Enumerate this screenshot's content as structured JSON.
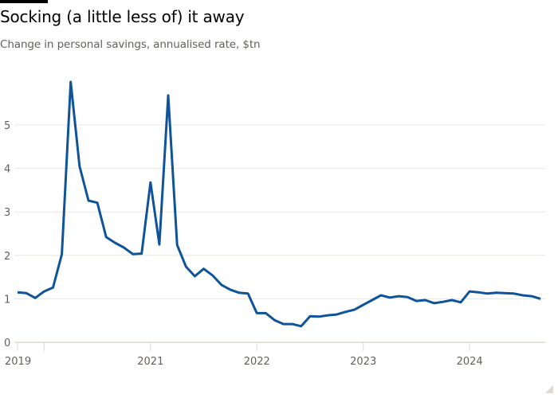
{
  "header": {
    "title": "Socking (a little less of) it away",
    "subtitle": "Change in personal savings, annualised rate, $tn"
  },
  "colors": {
    "line": "#0f5499",
    "grid": "#ece5df",
    "axis_text": "#66605c",
    "title": "#000000",
    "accent_bar": "#000000",
    "corner": "#e3d6cb"
  },
  "chart_data": {
    "type": "line",
    "title": "Socking (a little less of) it away",
    "subtitle": "Change in personal savings, annualised rate, $tn",
    "xlabel": "",
    "ylabel": "$tn",
    "ylim": [
      0,
      6
    ],
    "yticks": [
      0,
      1,
      2,
      3,
      4,
      5
    ],
    "xtick_labels": [
      "2019",
      "2021",
      "2022",
      "2023",
      "2024"
    ],
    "grid": true,
    "legend": null,
    "series": [
      {
        "name": "Change in personal savings, annualised rate ($tn)",
        "frequency": "monthly",
        "start": "2019-10",
        "values": [
          1.15,
          1.13,
          1.02,
          1.17,
          1.26,
          2.03,
          5.99,
          4.05,
          3.26,
          3.21,
          2.42,
          2.29,
          2.18,
          2.03,
          2.04,
          3.68,
          2.25,
          5.68,
          2.24,
          1.74,
          1.52,
          1.69,
          1.54,
          1.32,
          1.21,
          1.14,
          1.12,
          0.67,
          0.67,
          0.51,
          0.42,
          0.42,
          0.37,
          0.6,
          0.59,
          0.62,
          0.64,
          0.7,
          0.75,
          0.86,
          0.97,
          1.08,
          1.03,
          1.06,
          1.04,
          0.95,
          0.97,
          0.9,
          0.93,
          0.97,
          0.92,
          1.17,
          1.15,
          1.12,
          1.14,
          1.13,
          1.12,
          1.08,
          1.06,
          1.0
        ]
      }
    ]
  }
}
